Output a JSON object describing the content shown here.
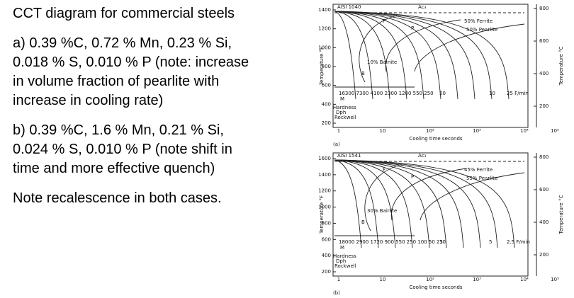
{
  "slide": {
    "paragraphs": [
      "CCT diagram for commercial steels",
      "a) 0.39 %C, 0.72 % Mn, 0.23 % Si, 0.018 % S, 0.010 % P (note: increase in volume fraction of pearlite with increase in cooling rate)",
      "b) 0.39 %C, 1.6 % Mn, 0.21 % Si, 0.024 % S, 0.010 % P (note shift in time and more effective quench)",
      "Note recalescence in both cases."
    ]
  },
  "diagrams": [
    {
      "label": "(a)",
      "title": "AISI 1040",
      "y_label": "Temperature °F",
      "y2_label": "Temperature °C",
      "x_label": "Cooling time seconds",
      "yticks": [
        "1400",
        "1200",
        "1000",
        "800",
        "600",
        "400",
        "200"
      ],
      "y2ticks": [
        "800",
        "600",
        "400",
        "200"
      ],
      "xticks": [
        "1",
        "10",
        "10²",
        "10³",
        "10⁴",
        "10⁵"
      ],
      "annotations": [
        "Ac₃",
        "F",
        "P",
        "50% Ferrite",
        "50% Pearlite",
        "10% Bainite",
        "B",
        "M",
        "16300 7300 4100 2300 1200 550 250",
        "50",
        "10",
        "25 F/min",
        "Hardness",
        "Dph",
        "Rockwell"
      ]
    },
    {
      "label": "(b)",
      "title": "AISI 1541",
      "y_label": "Temperature °F",
      "y2_label": "Temperature °C",
      "x_label": "Cooling time seconds",
      "yticks": [
        "1600",
        "1400",
        "1200",
        "1000",
        "800",
        "600",
        "400",
        "200"
      ],
      "y2ticks": [
        "800",
        "600",
        "400",
        "200"
      ],
      "xticks": [
        "1",
        "10",
        "10²",
        "10³",
        "10⁴",
        "10⁵"
      ],
      "annotations": [
        "Ac₃",
        "F",
        "P",
        "45% Ferrite",
        "55% Pearlite",
        "30% Bainite",
        "B",
        "M",
        "18000 2900 1720 900 550 250 100 50 25",
        "10",
        "5",
        "2.5 F/min",
        "Hardness",
        "Dph",
        "Rockwell"
      ]
    }
  ]
}
